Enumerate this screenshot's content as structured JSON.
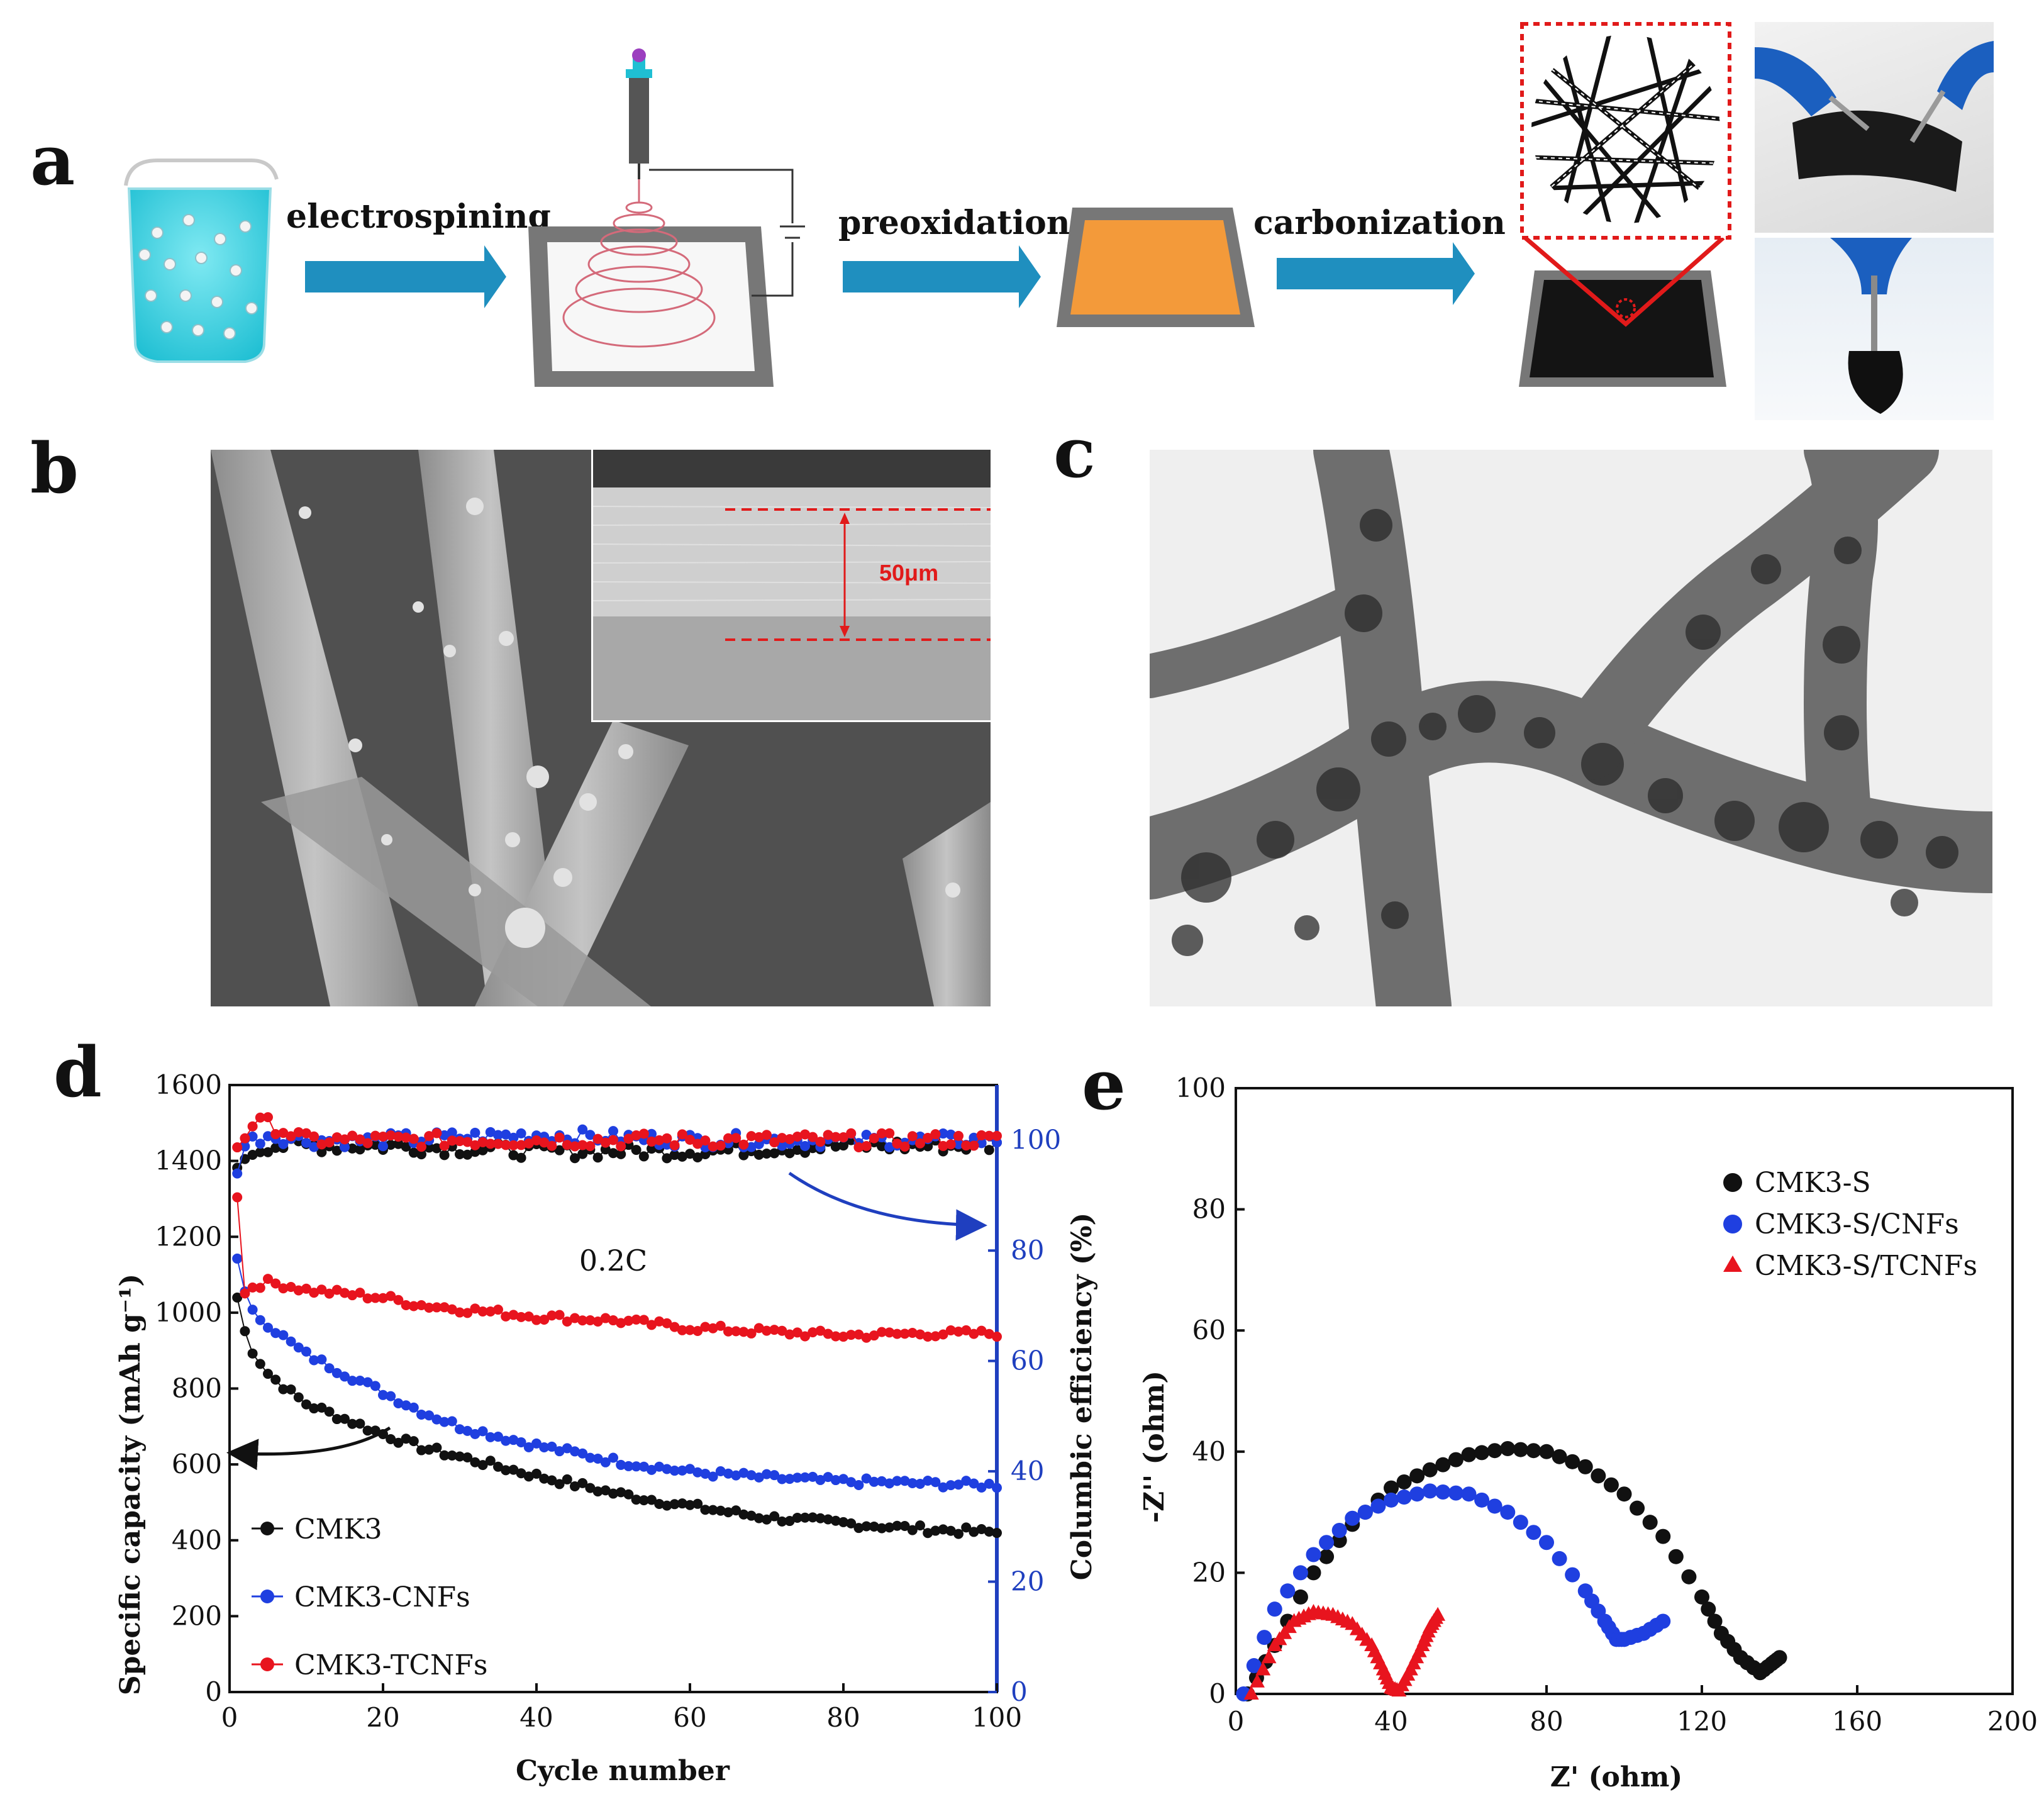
{
  "panel_labels": {
    "a": "a",
    "b": "b",
    "c": "c",
    "d": "d",
    "e": "e"
  },
  "schematic": {
    "step1_label": "electrospining",
    "step2_label": "preoxidation",
    "step3_label": "carbonization",
    "colors": {
      "arrow": "#1f8fbf",
      "solution": "#38d7e6",
      "preoxidized_mat": "#f39a3a",
      "carbon_mat": "#141414",
      "frame": "#777777",
      "spiral": "#d46a7a",
      "highlight": "#e11a1a"
    }
  },
  "sem_inset": {
    "scale_label": "50μm"
  },
  "chart_data": [
    {
      "id": "d",
      "type": "line",
      "xlabel": "Cycle number",
      "ylabel": "Specific capacity (mAh g⁻¹)",
      "y2label": "Columbic efficiency (%)",
      "xlim": [
        0,
        100
      ],
      "ylim": [
        0,
        1600
      ],
      "y2lim": [
        0,
        110
      ],
      "xticks": [
        0,
        20,
        40,
        60,
        80,
        100
      ],
      "yticks": [
        0,
        200,
        400,
        600,
        800,
        1000,
        1200,
        1400,
        1600
      ],
      "y2ticks": [
        0,
        20,
        40,
        60,
        80,
        100
      ],
      "annotation": "0.2C",
      "legend": "bottom-left",
      "grid": false,
      "series": [
        {
          "name": "CMK3",
          "color": "#111111",
          "axis": "left",
          "x": [
            1,
            2,
            3,
            5,
            8,
            10,
            15,
            20,
            25,
            30,
            40,
            50,
            60,
            70,
            80,
            90,
            100
          ],
          "values": [
            1040,
            950,
            900,
            840,
            790,
            760,
            720,
            680,
            645,
            620,
            570,
            525,
            490,
            460,
            445,
            430,
            420
          ]
        },
        {
          "name": "CMK3-CNFs",
          "color": "#1f3fe0",
          "axis": "left",
          "x": [
            1,
            2,
            3,
            5,
            8,
            10,
            15,
            20,
            25,
            30,
            40,
            50,
            60,
            70,
            80,
            90,
            100
          ],
          "values": [
            1150,
            1050,
            1000,
            970,
            920,
            890,
            840,
            790,
            740,
            700,
            650,
            610,
            580,
            565,
            555,
            550,
            545
          ]
        },
        {
          "name": "CMK3-TCNFs",
          "color": "#e8141e",
          "axis": "left",
          "x": [
            1,
            2,
            3,
            5,
            8,
            10,
            15,
            20,
            25,
            30,
            40,
            50,
            60,
            70,
            80,
            90,
            100
          ],
          "values": [
            1310,
            1050,
            1070,
            1080,
            1070,
            1060,
            1050,
            1040,
            1020,
            1010,
            990,
            980,
            960,
            950,
            940,
            945,
            945
          ]
        },
        {
          "name": "CMK3 efficiency",
          "color": "#111111",
          "axis": "right",
          "x": [
            1,
            2,
            3,
            5,
            10,
            20,
            40,
            60,
            80,
            100
          ],
          "values": [
            94,
            97,
            98,
            99,
            99,
            99,
            98,
            98,
            99,
            99
          ]
        },
        {
          "name": "CMK3-CNFs efficiency",
          "color": "#1f3fe0",
          "axis": "right",
          "x": [
            1,
            2,
            3,
            5,
            10,
            20,
            40,
            60,
            80,
            100
          ],
          "values": [
            95,
            99,
            100,
            101,
            100,
            100,
            101,
            100,
            100,
            100
          ]
        },
        {
          "name": "CMK3-TCNFs efficiency",
          "color": "#e8141e",
          "axis": "right",
          "x": [
            1,
            2,
            3,
            5,
            10,
            20,
            40,
            60,
            80,
            100
          ],
          "values": [
            99,
            101,
            103,
            103,
            100,
            100,
            100,
            100,
            100,
            100
          ]
        }
      ]
    },
    {
      "id": "e",
      "type": "scatter",
      "xlabel": "Z' (ohm)",
      "ylabel": "-Z'' (ohm)",
      "xlim": [
        0,
        200
      ],
      "ylim": [
        0,
        100
      ],
      "xticks": [
        0,
        40,
        80,
        120,
        160,
        200
      ],
      "yticks": [
        0,
        20,
        40,
        60,
        80,
        100
      ],
      "legend": "top-right",
      "grid": false,
      "series": [
        {
          "name": "CMK3-S",
          "color": "#111111",
          "marker": "circle",
          "x": [
            3,
            10,
            20,
            30,
            40,
            50,
            60,
            70,
            80,
            90,
            100,
            110,
            120,
            125,
            130,
            135,
            138,
            140
          ],
          "y": [
            0,
            8,
            20,
            28,
            34,
            37,
            39.5,
            40.5,
            40,
            37.5,
            33,
            26,
            16,
            10,
            6,
            3.5,
            5,
            6
          ]
        },
        {
          "name": "CMK3-S/CNFs",
          "color": "#1f3fe0",
          "marker": "circle",
          "x": [
            2,
            10,
            20,
            30,
            40,
            50,
            60,
            70,
            80,
            90,
            95,
            98,
            100,
            105,
            110
          ],
          "y": [
            0,
            14,
            23,
            29,
            32,
            33.5,
            33,
            30,
            25,
            17,
            12,
            9,
            9,
            10,
            12
          ]
        },
        {
          "name": "CMK3-S/TCNFs",
          "color": "#e8141e",
          "marker": "triangle",
          "x": [
            4,
            10,
            15,
            20,
            25,
            30,
            35,
            38,
            40,
            42,
            45,
            48,
            50,
            52
          ],
          "y": [
            0,
            8,
            12,
            13.5,
            13,
            11.5,
            8,
            4,
            1,
            0.5,
            4,
            8,
            11,
            13
          ]
        }
      ]
    }
  ]
}
